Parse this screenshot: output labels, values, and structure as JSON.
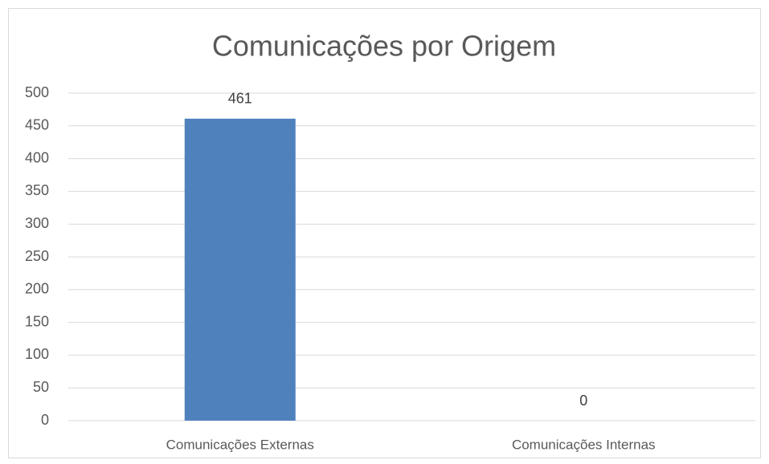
{
  "chart_data": {
    "type": "bar",
    "title": "Comunicações por Origem",
    "categories": [
      "Comunicações Externas",
      "Comunicações Internas"
    ],
    "values": [
      461,
      0
    ],
    "color": "#4f81bd",
    "ylim": [
      0,
      500
    ],
    "yticks": [
      0,
      50,
      100,
      150,
      200,
      250,
      300,
      350,
      400,
      450,
      500
    ],
    "grid": true,
    "data_labels": true
  }
}
